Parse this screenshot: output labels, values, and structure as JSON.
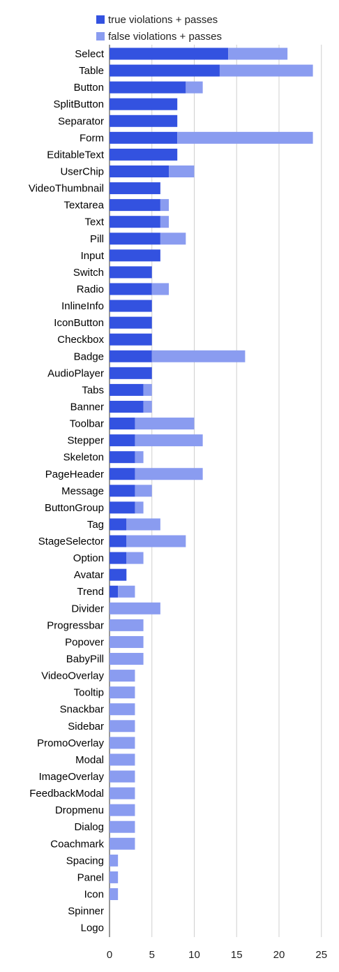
{
  "chart_data": {
    "type": "bar",
    "orientation": "horizontal",
    "stacked": true,
    "title": "",
    "xlabel": "",
    "ylabel": "",
    "xlim": [
      0,
      25
    ],
    "x_ticks": [
      0,
      5,
      10,
      15,
      20,
      25
    ],
    "grid": true,
    "legend_position": "top",
    "categories": [
      "Select",
      "Table",
      "Button",
      "SplitButton",
      "Separator",
      "Form",
      "EditableText",
      "UserChip",
      "VideoThumbnail",
      "Textarea",
      "Text",
      "Pill",
      "Input",
      "Switch",
      "Radio",
      "InlineInfo",
      "IconButton",
      "Checkbox",
      "Badge",
      "AudioPlayer",
      "Tabs",
      "Banner",
      "Toolbar",
      "Stepper",
      "Skeleton",
      "PageHeader",
      "Message",
      "ButtonGroup",
      "Tag",
      "StageSelector",
      "Option",
      "Avatar",
      "Trend",
      "Divider",
      "Progressbar",
      "Popover",
      "BabyPill",
      "VideoOverlay",
      "Tooltip",
      "Snackbar",
      "Sidebar",
      "PromoOverlay",
      "Modal",
      "ImageOverlay",
      "FeedbackModal",
      "Dropmenu",
      "Dialog",
      "Coachmark",
      "Spacing",
      "Panel",
      "Icon",
      "Spinner",
      "Logo"
    ],
    "series": [
      {
        "name": "true violations + passes",
        "color": "#3352e0",
        "values": [
          14,
          13,
          9,
          8,
          8,
          8,
          8,
          7,
          6,
          6,
          6,
          6,
          6,
          5,
          5,
          5,
          5,
          5,
          5,
          5,
          4,
          4,
          3,
          3,
          3,
          3,
          3,
          3,
          2,
          2,
          2,
          2,
          1,
          0,
          0,
          0,
          0,
          0,
          0,
          0,
          0,
          0,
          0,
          0,
          0,
          0,
          0,
          0,
          0,
          0,
          0,
          0,
          0
        ]
      },
      {
        "name": "false violations + passes",
        "color": "#8a9cf0",
        "values": [
          7,
          11,
          2,
          0,
          0,
          16,
          0,
          3,
          0,
          1,
          1,
          3,
          0,
          0,
          2,
          0,
          0,
          0,
          11,
          0,
          1,
          1,
          7,
          8,
          1,
          8,
          2,
          1,
          4,
          7,
          2,
          0,
          2,
          6,
          4,
          4,
          4,
          3,
          3,
          3,
          3,
          3,
          3,
          3,
          3,
          3,
          3,
          3,
          1,
          1,
          1,
          0,
          0
        ]
      }
    ]
  }
}
